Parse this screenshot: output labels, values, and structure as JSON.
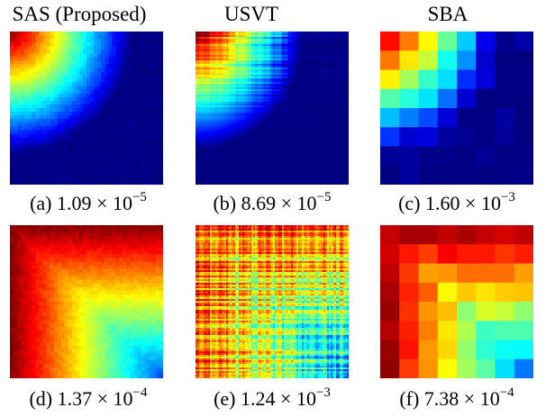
{
  "columns": [
    "SAS (Proposed)",
    "USVT",
    "SBA"
  ],
  "panels": [
    {
      "label": "(a)",
      "mantissa": "1.09",
      "times": "×",
      "base": "10",
      "exp": "−5",
      "kind": "sas-top",
      "icon": "smooth-corner-heatmap-icon"
    },
    {
      "label": "(b)",
      "mantissa": "8.69",
      "times": "×",
      "base": "10",
      "exp": "−5",
      "kind": "usvt-top",
      "icon": "noisy-corner-heatmap-icon"
    },
    {
      "label": "(c)",
      "mantissa": "1.60",
      "times": "×",
      "base": "10",
      "exp": "−3",
      "kind": "sba-top",
      "icon": "blocky-corner-heatmap-icon"
    },
    {
      "label": "(d)",
      "mantissa": "1.37",
      "times": "×",
      "base": "10",
      "exp": "−4",
      "kind": "sas-bot",
      "icon": "smooth-lshape-heatmap-icon"
    },
    {
      "label": "(e)",
      "mantissa": "1.24",
      "times": "×",
      "base": "10",
      "exp": "−3",
      "kind": "usvt-bot",
      "icon": "noisy-lshape-heatmap-icon"
    },
    {
      "label": "(f)",
      "mantissa": "7.38",
      "times": "×",
      "base": "10",
      "exp": "−4",
      "kind": "sba-bot",
      "icon": "blocky-lshape-heatmap-icon"
    }
  ],
  "colormap": "jet"
}
